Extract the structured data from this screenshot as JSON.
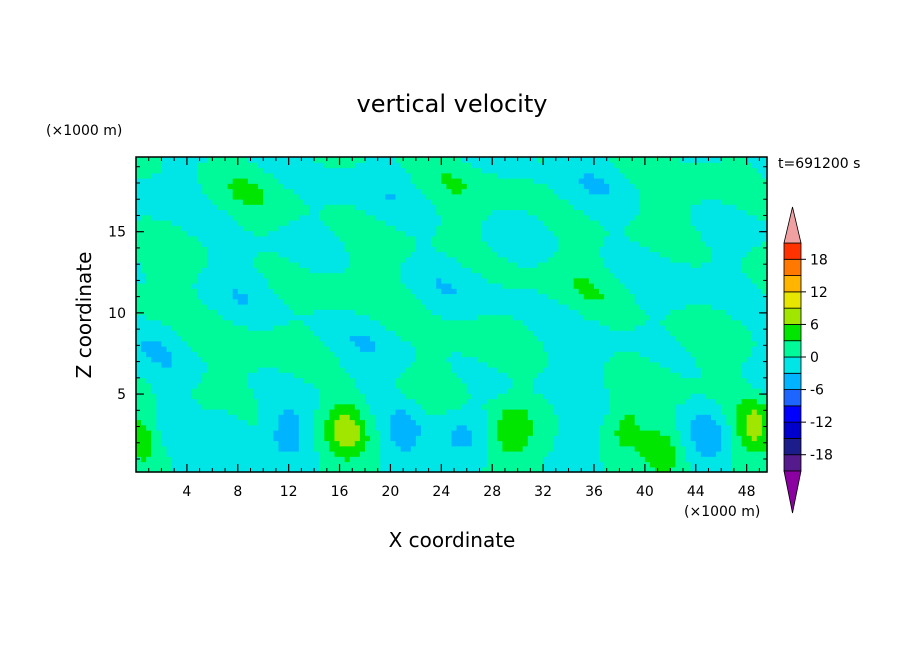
{
  "chart_data": {
    "type": "heatmap",
    "title": "vertical velocity",
    "time_label": "t=691200 s",
    "xlabel": "X coordinate",
    "ylabel": "Z coordinate",
    "x_unit": "(×1000 m)",
    "y_unit": "(×1000 m)",
    "xlim": [
      0,
      49.6
    ],
    "ylim": [
      0.2,
      19.6
    ],
    "x_ticks": [
      4,
      8,
      12,
      16,
      20,
      24,
      28,
      32,
      36,
      40,
      44,
      48
    ],
    "y_ticks": [
      5,
      10,
      15
    ],
    "colorbar": {
      "levels": [
        -21,
        -18,
        -15,
        -12,
        -9,
        -6,
        -3,
        0,
        3,
        6,
        9,
        12,
        15,
        18,
        21
      ],
      "tick_labels": [
        -18,
        -12,
        -6,
        0,
        6,
        12,
        18
      ],
      "colors": [
        "#551a8b",
        "#1c1c8a",
        "#0000cd",
        "#0000ff",
        "#1e64ff",
        "#00b4ff",
        "#00e6e6",
        "#00fa9a",
        "#00e600",
        "#a0e600",
        "#e6e600",
        "#ffb400",
        "#ff7800",
        "#ff3200",
        "#e60000"
      ],
      "under_color": "#8b00a0",
      "over_color": "#f0a0a0"
    },
    "features": [
      {
        "kind": "updraft",
        "x": 0.5,
        "z": 2.2,
        "peak": 4
      },
      {
        "kind": "downdraft",
        "x": 2.5,
        "z": 3.0,
        "peak": -3
      },
      {
        "kind": "downdraft",
        "x": 7.0,
        "z": 2.7,
        "peak": -2
      },
      {
        "kind": "downdraft",
        "x": 12.0,
        "z": 2.6,
        "peak": -4
      },
      {
        "kind": "updraft",
        "x": 16.5,
        "z": 2.8,
        "peak": 7
      },
      {
        "kind": "downdraft",
        "x": 21.0,
        "z": 2.5,
        "peak": -4
      },
      {
        "kind": "downdraft",
        "x": 25.5,
        "z": 2.4,
        "peak": -3
      },
      {
        "kind": "updraft",
        "x": 29.5,
        "z": 2.6,
        "peak": 6
      },
      {
        "kind": "downdraft",
        "x": 34.5,
        "z": 2.5,
        "peak": -4
      },
      {
        "kind": "updraft",
        "x": 38.5,
        "z": 3.0,
        "peak": 4
      },
      {
        "kind": "updraft",
        "x": 41.3,
        "z": 1.5,
        "peak": 5
      },
      {
        "kind": "downdraft",
        "x": 45.0,
        "z": 2.4,
        "peak": -4
      },
      {
        "kind": "updraft",
        "x": 48.5,
        "z": 2.9,
        "peak": 6
      }
    ],
    "grid": false,
    "legend": "colorbar-right"
  }
}
